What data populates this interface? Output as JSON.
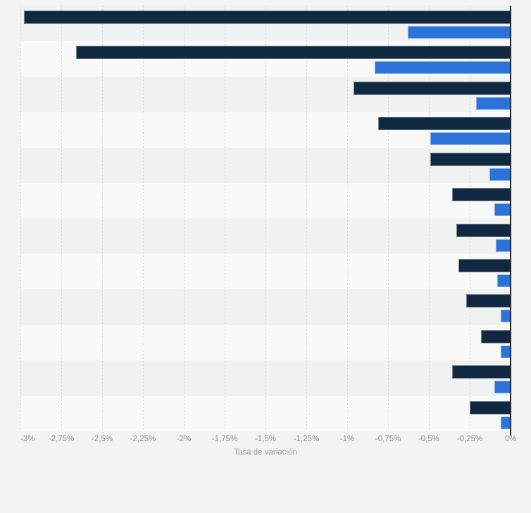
{
  "page": {
    "background": "#f3f3f4"
  },
  "chart_data": {
    "type": "bar",
    "orientation": "horizontal",
    "title": "",
    "xlabel": "Tasa de variación",
    "x_tick_labels": [
      "-3%",
      "-2,75%",
      "-2,5%",
      "-2,25%",
      "-2%",
      "-1,75%",
      "-1,5%",
      "-1,25%",
      "-1%",
      "-0,75%",
      "-0,5%",
      "-0,25%",
      "0%"
    ],
    "xlim": [
      -3,
      0
    ],
    "x_tick_step": 0.25,
    "value_unit": "%",
    "decimal_separator": "comma",
    "gridlines": "vertical-dashed",
    "legend_position": "none",
    "categories": [
      "",
      "",
      "",
      "",
      "",
      "",
      "",
      "",
      "",
      "",
      "",
      ""
    ],
    "series": [
      {
        "name": "dark-navy-series",
        "color": "#102940",
        "values": [
          -2.98,
          -2.66,
          -0.96,
          -0.81,
          -0.49,
          -0.36,
          -0.33,
          -0.32,
          -0.27,
          -0.18,
          -0.36,
          -0.25
        ]
      },
      {
        "name": "blue-series",
        "color": "#2b73d9",
        "values": [
          -0.63,
          -0.83,
          -0.21,
          -0.49,
          -0.13,
          -0.1,
          -0.09,
          -0.08,
          -0.06,
          -0.06,
          -0.1,
          -0.06
        ]
      }
    ],
    "style": {
      "row_stripe_odd": "#f0f1f1",
      "row_stripe_even": "#f9f9fa",
      "axis_line_color": "#262626",
      "tick_label_color": "#8e8e8e",
      "axis_title_color": "#9c9c9c"
    }
  }
}
